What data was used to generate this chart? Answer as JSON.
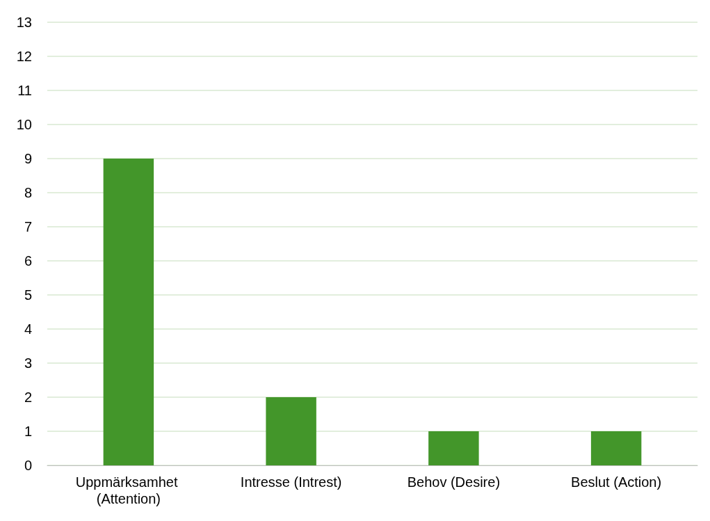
{
  "chart_data": {
    "type": "bar",
    "categories": [
      "Uppmärksamhet (Attention)",
      "Intresse (Intrest)",
      "Behov (Desire)",
      "Beslut (Action)"
    ],
    "values": [
      9,
      2,
      1,
      1
    ],
    "color": "#43962a",
    "ylim": [
      0,
      13
    ],
    "yticks": [
      0,
      1,
      2,
      3,
      4,
      5,
      6,
      7,
      8,
      9,
      10,
      11,
      12,
      13
    ],
    "grid": "y"
  }
}
